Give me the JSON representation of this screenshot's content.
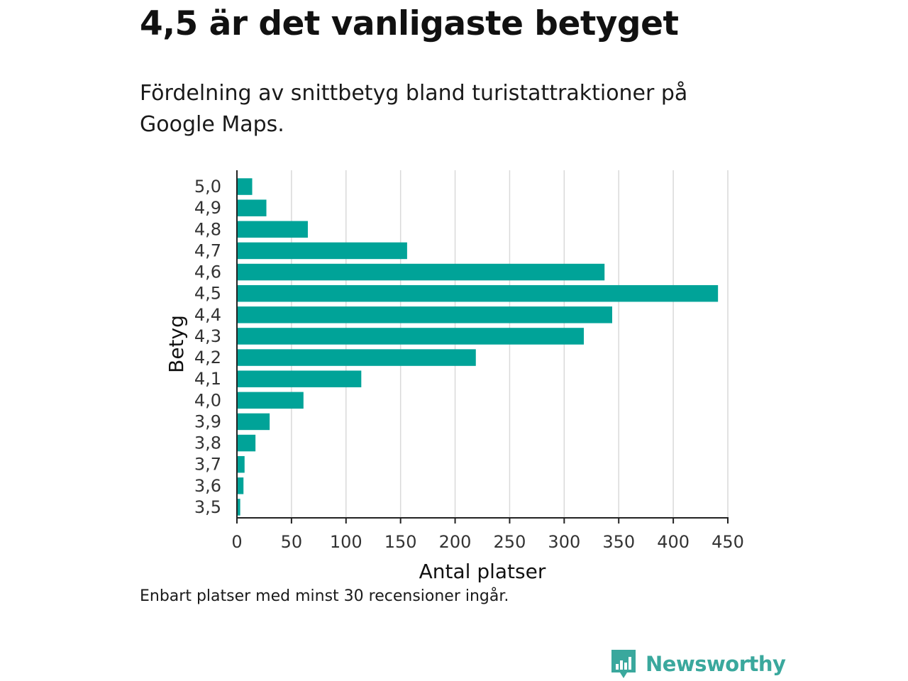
{
  "header": {
    "title": "4,5 är det vanligaste betyget",
    "subtitle": "Fördelning av snittbetyg bland turistattraktioner på Google Maps."
  },
  "footer": {
    "note": "Enbart platser med minst 30 recensioner ingår.",
    "brand": "Newsworthy",
    "brand_icon": "bar-chart-logo-icon"
  },
  "colors": {
    "bar": "#00a398",
    "brand": "#3aa89d",
    "grid": "#d9d9d9",
    "axis": "#222222"
  },
  "chart_data": {
    "type": "bar",
    "orientation": "horizontal",
    "categories": [
      "5,0",
      "4,9",
      "4,8",
      "4,7",
      "4,6",
      "4,5",
      "4,4",
      "4,3",
      "4,2",
      "4,1",
      "4,0",
      "3,9",
      "3,8",
      "3,7",
      "3,6",
      "3,5"
    ],
    "values": [
      14,
      27,
      65,
      156,
      337,
      441,
      344,
      318,
      219,
      114,
      61,
      30,
      17,
      7,
      6,
      3
    ],
    "xlabel": "Antal platser",
    "ylabel": "Betyg",
    "xlim": [
      0,
      450
    ],
    "xticks": [
      0,
      50,
      100,
      150,
      200,
      250,
      300,
      350,
      400,
      450
    ],
    "grid": "vertical"
  }
}
